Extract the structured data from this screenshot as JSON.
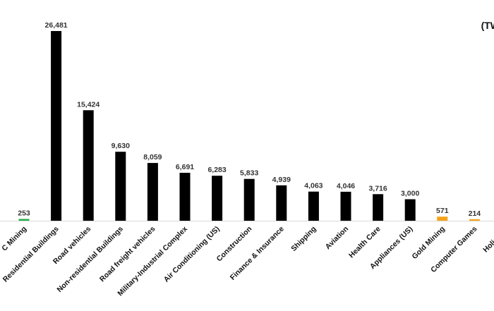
{
  "chart_data": {
    "type": "bar",
    "unit_label": "(TW",
    "categories": [
      "C Mining",
      "Residential Buildings",
      "Road vehicles",
      "Non-residential Buildings",
      "Road freight vehicles",
      "Military-Industrial Complex",
      "Air Conditioning (US)",
      "Construction",
      "Finance & Insurance",
      "Shipping",
      "Aviation",
      "Health Care",
      "Appliances (US)",
      "Gold Mining",
      "Computer Games",
      "Holiday L"
    ],
    "values": [
      253,
      26481,
      15424,
      9630,
      8059,
      6691,
      6283,
      5833,
      4939,
      4063,
      4046,
      3716,
      3000,
      571,
      214,
      null
    ],
    "value_labels": [
      "253",
      "26,481",
      "15,424",
      "9,630",
      "8,059",
      "6,691",
      "6,283",
      "5,833",
      "4,939",
      "4,063",
      "4,046",
      "3,716",
      "3,000",
      "571",
      "214",
      ""
    ],
    "bar_colors": [
      "#2bb24c",
      "#000000",
      "#000000",
      "#000000",
      "#000000",
      "#000000",
      "#000000",
      "#000000",
      "#000000",
      "#000000",
      "#000000",
      "#000000",
      "#000000",
      "#f5a31a",
      "#f5a31a",
      "#000000"
    ],
    "ylim": [
      0,
      27000
    ],
    "grid": false,
    "legend": "none"
  }
}
